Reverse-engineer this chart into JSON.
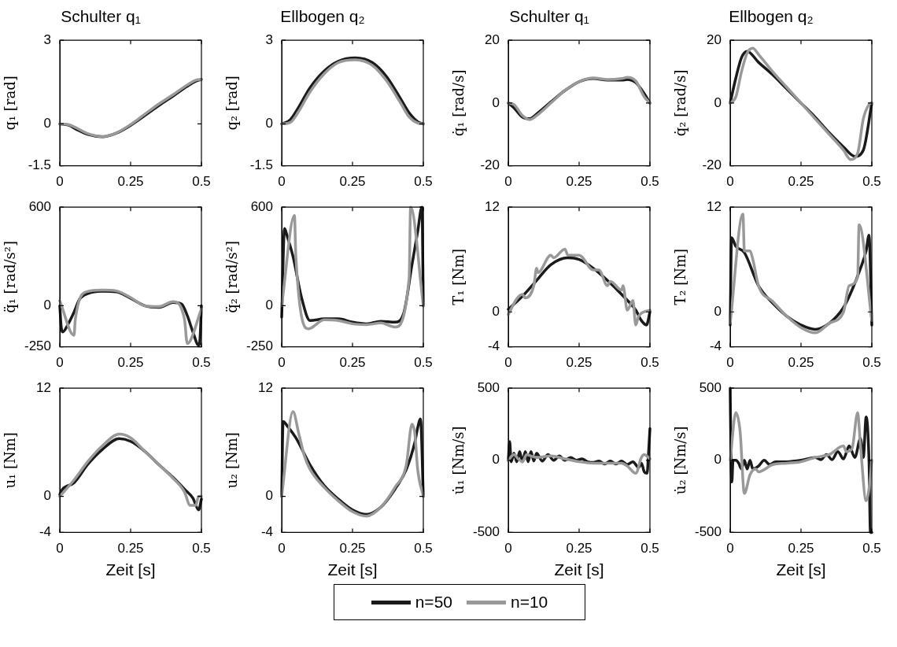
{
  "chart_data": [
    {
      "type": "line",
      "title": "Schulter q₁",
      "ylabel": "q₁ [rad]",
      "xlim": [
        0,
        0.5
      ],
      "xticks": [
        0,
        0.25,
        0.5
      ],
      "ylim": [
        -1.5,
        3
      ],
      "yticks": [
        -1.5,
        0,
        3
      ],
      "series": [
        {
          "color": "#1a1a1a",
          "x": [
            0,
            0.03,
            0.06,
            0.1,
            0.15,
            0.2,
            0.25,
            0.3,
            0.35,
            0.4,
            0.45,
            0.48,
            0.5
          ],
          "values": [
            0,
            -0.04,
            -0.2,
            -0.38,
            -0.46,
            -0.33,
            -0.05,
            0.3,
            0.66,
            1.0,
            1.35,
            1.53,
            1.6
          ]
        },
        {
          "color": "#999999",
          "x": [
            0,
            0.03,
            0.06,
            0.1,
            0.15,
            0.2,
            0.25,
            0.3,
            0.35,
            0.4,
            0.45,
            0.48,
            0.5
          ],
          "values": [
            0,
            -0.02,
            -0.15,
            -0.35,
            -0.45,
            -0.32,
            -0.02,
            0.35,
            0.72,
            1.05,
            1.4,
            1.57,
            1.6
          ]
        }
      ]
    },
    {
      "type": "line",
      "title": "Ellbogen q₂",
      "ylabel": "q₂ [rad]",
      "xlim": [
        0,
        0.5
      ],
      "xticks": [
        0,
        0.25,
        0.5
      ],
      "ylim": [
        -1.5,
        3
      ],
      "yticks": [
        -1.5,
        0,
        3
      ],
      "series": [
        {
          "color": "#1a1a1a",
          "x": [
            0,
            0.03,
            0.06,
            0.1,
            0.15,
            0.2,
            0.26,
            0.32,
            0.37,
            0.42,
            0.45,
            0.48,
            0.5
          ],
          "values": [
            0,
            0.15,
            0.6,
            1.3,
            1.9,
            2.25,
            2.37,
            2.2,
            1.7,
            0.9,
            0.4,
            0.08,
            0
          ]
        },
        {
          "color": "#999999",
          "x": [
            0,
            0.03,
            0.06,
            0.1,
            0.15,
            0.2,
            0.26,
            0.32,
            0.37,
            0.42,
            0.45,
            0.48,
            0.5
          ],
          "values": [
            0,
            0.05,
            0.45,
            1.15,
            1.8,
            2.2,
            2.3,
            2.1,
            1.55,
            0.75,
            0.25,
            0.03,
            0
          ]
        }
      ]
    },
    {
      "type": "line",
      "title": "Schulter q₁",
      "ylabel": "q̇₁ [rad/s]",
      "xlim": [
        0,
        0.5
      ],
      "xticks": [
        0,
        0.25,
        0.5
      ],
      "ylim": [
        -20,
        20
      ],
      "yticks": [
        -20,
        0,
        20
      ],
      "series": [
        {
          "color": "#1a1a1a",
          "x": [
            0,
            0.02,
            0.05,
            0.075,
            0.1,
            0.15,
            0.2,
            0.25,
            0.3,
            0.35,
            0.4,
            0.42,
            0.45,
            0.48,
            0.5
          ],
          "values": [
            0,
            -1.5,
            -4.5,
            -5,
            -3.5,
            0.3,
            4,
            6.8,
            7.8,
            7.3,
            7.3,
            7.5,
            6.5,
            3,
            0
          ]
        },
        {
          "color": "#999999",
          "x": [
            0,
            0.02,
            0.05,
            0.075,
            0.1,
            0.15,
            0.2,
            0.25,
            0.3,
            0.35,
            0.4,
            0.42,
            0.45,
            0.48,
            0.5
          ],
          "values": [
            0,
            -0.5,
            -4,
            -5.3,
            -4,
            0,
            4,
            6.8,
            8,
            7.5,
            7.8,
            8.2,
            7,
            2,
            0
          ]
        }
      ]
    },
    {
      "type": "line",
      "title": "Ellbogen q₂",
      "ylabel": "q̇₂ [rad/s]",
      "xlim": [
        0,
        0.5
      ],
      "xticks": [
        0,
        0.25,
        0.5
      ],
      "ylim": [
        -20,
        20
      ],
      "yticks": [
        -20,
        0,
        20
      ],
      "series": [
        {
          "color": "#1a1a1a",
          "x": [
            0,
            0.02,
            0.04,
            0.06,
            0.1,
            0.15,
            0.2,
            0.25,
            0.3,
            0.35,
            0.4,
            0.44,
            0.47,
            0.5
          ],
          "values": [
            0,
            8,
            14.5,
            16.5,
            13,
            9,
            4.5,
            0,
            -4.5,
            -9.5,
            -14,
            -17,
            -15,
            0
          ]
        },
        {
          "color": "#999999",
          "x": [
            0,
            0.02,
            0.04,
            0.06,
            0.08,
            0.1,
            0.15,
            0.2,
            0.25,
            0.3,
            0.35,
            0.4,
            0.425,
            0.45,
            0.47,
            0.49,
            0.5
          ],
          "values": [
            0,
            2,
            10,
            16,
            17.5,
            15.5,
            10,
            5,
            0,
            -5,
            -10,
            -15,
            -18,
            -16,
            -5,
            -0.5,
            0
          ]
        }
      ]
    },
    {
      "type": "line",
      "ylabel": "q̈₁ [rad/s²]",
      "xlim": [
        0,
        0.5
      ],
      "xticks": [
        0,
        0.25,
        0.5
      ],
      "ylim": [
        -250,
        600
      ],
      "yticks": [
        -250,
        0,
        600
      ],
      "series": [
        {
          "color": "#1a1a1a",
          "x": [
            0,
            0.005,
            0.01,
            0.03,
            0.05,
            0.07,
            0.1,
            0.15,
            0.2,
            0.25,
            0.3,
            0.35,
            0.4,
            0.43,
            0.45,
            0.47,
            0.49,
            0.495,
            0.5
          ],
          "values": [
            0,
            -130,
            -160,
            -110,
            -40,
            40,
            75,
            88,
            85,
            45,
            0,
            -10,
            20,
            10,
            -60,
            -160,
            -240,
            -200,
            0
          ]
        },
        {
          "color": "#999999",
          "x": [
            0,
            0.05,
            0.055,
            0.095,
            0.15,
            0.2,
            0.25,
            0.3,
            0.35,
            0.4,
            0.44,
            0.45,
            0.5
          ],
          "values": [
            30,
            -180,
            -80,
            85,
            95,
            90,
            50,
            0,
            -5,
            25,
            -80,
            -230,
            -20
          ]
        }
      ]
    },
    {
      "type": "line",
      "ylabel": "q̈₂ [rad/s²]",
      "xlim": [
        0,
        0.5
      ],
      "xticks": [
        0,
        0.25,
        0.5
      ],
      "ylim": [
        -250,
        600
      ],
      "yticks": [
        -250,
        0,
        600
      ],
      "series": [
        {
          "color": "#1a1a1a",
          "x": [
            0,
            0.01,
            0.02,
            0.04,
            0.07,
            0.1,
            0.15,
            0.2,
            0.25,
            0.3,
            0.35,
            0.4,
            0.43,
            0.46,
            0.48,
            0.495,
            0.5
          ],
          "values": [
            -70,
            470,
            420,
            300,
            50,
            -90,
            -80,
            -80,
            -100,
            -110,
            -95,
            -100,
            -50,
            250,
            450,
            600,
            0
          ]
        },
        {
          "color": "#999999",
          "x": [
            0,
            0.045,
            0.05,
            0.095,
            0.15,
            0.2,
            0.25,
            0.3,
            0.35,
            0.4,
            0.45,
            0.455,
            0.5
          ],
          "values": [
            0,
            550,
            300,
            -140,
            -85,
            -90,
            -110,
            -115,
            -105,
            -130,
            170,
            600,
            0
          ]
        }
      ]
    },
    {
      "type": "line",
      "ylabel": "T₁ [Nm]",
      "xlim": [
        0,
        0.5
      ],
      "xticks": [
        0,
        0.25,
        0.5
      ],
      "ylim": [
        -4,
        12
      ],
      "yticks": [
        -4,
        0,
        12
      ],
      "series": [
        {
          "color": "#1a1a1a",
          "x": [
            0,
            0.05,
            0.1,
            0.15,
            0.21,
            0.25,
            0.3,
            0.35,
            0.4,
            0.45,
            0.47,
            0.488,
            0.5
          ],
          "values": [
            0.3,
            1.8,
            3.6,
            5.4,
            6.2,
            6,
            5,
            3.6,
            2,
            0.2,
            -1,
            -1.5,
            0
          ]
        },
        {
          "color": "#999999",
          "x": [
            0,
            0.03,
            0.05,
            0.06,
            0.09,
            0.1,
            0.105,
            0.15,
            0.16,
            0.2,
            0.21,
            0.25,
            0.3,
            0.32,
            0.35,
            0.36,
            0.4,
            0.405,
            0.42,
            0.44,
            0.45,
            0.46,
            0.5
          ],
          "values": [
            -0.3,
            1.5,
            2,
            1.6,
            3,
            5,
            4.5,
            6.5,
            6.2,
            7.2,
            6.5,
            6.5,
            4.8,
            4.8,
            3,
            3.5,
            2.5,
            3,
            0.2,
            1.3,
            -1.5,
            -0.5,
            0.2
          ]
        }
      ]
    },
    {
      "type": "line",
      "ylabel": "T₂ [Nm]",
      "xlim": [
        0,
        0.5
      ],
      "xticks": [
        0,
        0.25,
        0.5
      ],
      "ylim": [
        -4,
        12
      ],
      "yticks": [
        -4,
        0,
        12
      ],
      "series": [
        {
          "color": "#1a1a1a",
          "x": [
            0,
            0.005,
            0.02,
            0.05,
            0.1,
            0.15,
            0.2,
            0.25,
            0.3,
            0.35,
            0.4,
            0.43,
            0.46,
            0.48,
            0.49,
            0.5
          ],
          "values": [
            -1.5,
            8.5,
            7.5,
            6.8,
            3,
            1,
            -0.5,
            -1.5,
            -2,
            -1.3,
            0.5,
            2.5,
            5,
            7,
            8.8,
            -1.5
          ]
        },
        {
          "color": "#999999",
          "x": [
            0,
            0.045,
            0.05,
            0.07,
            0.08,
            0.1,
            0.15,
            0.2,
            0.25,
            0.3,
            0.35,
            0.4,
            0.42,
            0.45,
            0.455,
            0.5
          ],
          "values": [
            -1.3,
            11.2,
            7,
            7,
            6,
            3,
            1.2,
            -0.5,
            -1.8,
            -2.4,
            -1.3,
            0,
            3,
            4,
            10,
            -1
          ]
        }
      ]
    },
    {
      "type": "line",
      "ylabel": "u₁ [Nm]",
      "xlabel": "Zeit [s]",
      "xlim": [
        0,
        0.5
      ],
      "xticks": [
        0,
        0.25,
        0.5
      ],
      "ylim": [
        -4,
        12
      ],
      "yticks": [
        -4,
        0,
        12
      ],
      "series": [
        {
          "color": "#1a1a1a",
          "x": [
            0,
            0.01,
            0.05,
            0.1,
            0.15,
            0.21,
            0.25,
            0.3,
            0.35,
            0.4,
            0.44,
            0.47,
            0.49,
            0.5
          ],
          "values": [
            0.2,
            0.8,
            1.5,
            3.6,
            5.2,
            6.4,
            6.1,
            5,
            3.5,
            2.1,
            0.8,
            -0.2,
            -1.5,
            -0.3
          ]
        },
        {
          "color": "#999999",
          "x": [
            0,
            0.05,
            0.1,
            0.15,
            0.21,
            0.25,
            0.3,
            0.35,
            0.4,
            0.44,
            0.46,
            0.48,
            0.49,
            0.5
          ],
          "values": [
            0,
            1.8,
            3.9,
            5.6,
            6.9,
            6.5,
            5,
            3.5,
            2,
            0.5,
            -1,
            -1,
            0,
            0
          ]
        }
      ]
    },
    {
      "type": "line",
      "ylabel": "u₂ [Nm]",
      "xlabel": "Zeit [s]",
      "xlim": [
        0,
        0.5
      ],
      "xticks": [
        0,
        0.25,
        0.5
      ],
      "ylim": [
        -4,
        12
      ],
      "yticks": [
        -4,
        0,
        12
      ],
      "legend": "bottom",
      "series": [
        {
          "name": "n=50",
          "color": "#1a1a1a",
          "x": [
            0,
            0.005,
            0.02,
            0.05,
            0.1,
            0.15,
            0.2,
            0.25,
            0.3,
            0.35,
            0.4,
            0.44,
            0.47,
            0.48,
            0.49,
            0.5
          ],
          "values": [
            0,
            8.3,
            7.8,
            6.5,
            3.5,
            1.2,
            -0.3,
            -1.5,
            -2,
            -1.2,
            0.8,
            3,
            6,
            7.6,
            8.6,
            0
          ]
        },
        {
          "name": "n=10",
          "color": "#999999",
          "x": [
            0,
            0.04,
            0.06,
            0.08,
            0.1,
            0.15,
            0.2,
            0.25,
            0.3,
            0.35,
            0.4,
            0.44,
            0.46,
            0.47,
            0.48,
            0.5
          ],
          "values": [
            0,
            9.4,
            7,
            4.5,
            3,
            1,
            -0.5,
            -1.7,
            -2.2,
            -1.2,
            1,
            3.5,
            8,
            7,
            3,
            0
          ]
        }
      ]
    },
    {
      "type": "line",
      "ylabel": "u̇₁ [Nm/s]",
      "xlabel": "Zeit [s]",
      "xlim": [
        0,
        0.5
      ],
      "xticks": [
        0,
        0.25,
        0.5
      ],
      "ylim": [
        -500,
        500
      ],
      "yticks": [
        -500,
        0,
        500
      ],
      "series": [
        {
          "color": "#1a1a1a",
          "x": [
            0,
            0.005,
            0.01,
            0.02,
            0.03,
            0.04,
            0.05,
            0.06,
            0.07,
            0.08,
            0.09,
            0.1,
            0.12,
            0.14,
            0.16,
            0.18,
            0.2,
            0.22,
            0.24,
            0.26,
            0.28,
            0.3,
            0.32,
            0.34,
            0.36,
            0.38,
            0.4,
            0.42,
            0.44,
            0.46,
            0.47,
            0.48,
            0.49,
            0.495,
            0.5
          ],
          "values": [
            0,
            130,
            -10,
            50,
            -10,
            60,
            -10,
            60,
            -10,
            60,
            -5,
            50,
            -5,
            40,
            0,
            30,
            0,
            20,
            0,
            10,
            -10,
            -15,
            -5,
            -25,
            -5,
            -25,
            -5,
            -30,
            -10,
            -50,
            -20,
            -80,
            -90,
            50,
            220
          ]
        },
        {
          "color": "#999999",
          "x": [
            0,
            0.02,
            0.035,
            0.05,
            0.065,
            0.08,
            0.1,
            0.15,
            0.2,
            0.25,
            0.3,
            0.35,
            0.4,
            0.42,
            0.45,
            0.47,
            0.48,
            0.5
          ],
          "values": [
            0,
            40,
            10,
            -10,
            40,
            30,
            20,
            30,
            10,
            -10,
            -20,
            -20,
            -20,
            -40,
            -90,
            20,
            40,
            10
          ]
        }
      ]
    },
    {
      "type": "line",
      "ylabel": "u̇₂ [Nm/s]",
      "xlabel": "Zeit [s]",
      "xlim": [
        0,
        0.5
      ],
      "xticks": [
        0,
        0.25,
        0.5
      ],
      "ylim": [
        -500,
        500
      ],
      "yticks": [
        -500,
        0,
        500
      ],
      "series": [
        {
          "color": "#1a1a1a",
          "x": [
            0,
            0.003,
            0.006,
            0.01,
            0.02,
            0.03,
            0.04,
            0.05,
            0.06,
            0.07,
            0.08,
            0.1,
            0.12,
            0.14,
            0.16,
            0.2,
            0.25,
            0.3,
            0.32,
            0.34,
            0.36,
            0.38,
            0.4,
            0.42,
            0.44,
            0.46,
            0.47,
            0.48,
            0.49,
            0.495,
            0.5
          ],
          "values": [
            500,
            0,
            -150,
            0,
            0,
            -20,
            -60,
            0,
            -60,
            0,
            -60,
            -40,
            0,
            -30,
            -10,
            -10,
            0,
            20,
            5,
            40,
            5,
            60,
            10,
            100,
            20,
            150,
            20,
            300,
            0,
            -500,
            -500
          ]
        },
        {
          "color": "#999999",
          "x": [
            0,
            0.02,
            0.035,
            0.05,
            0.07,
            0.09,
            0.1,
            0.15,
            0.2,
            0.25,
            0.3,
            0.35,
            0.4,
            0.41,
            0.43,
            0.45,
            0.46,
            0.48,
            0.49,
            0.5
          ],
          "values": [
            0,
            330,
            200,
            -230,
            -100,
            -60,
            -80,
            -30,
            -20,
            -10,
            20,
            40,
            100,
            60,
            80,
            330,
            100,
            -280,
            -200,
            0
          ]
        }
      ]
    }
  ]
}
